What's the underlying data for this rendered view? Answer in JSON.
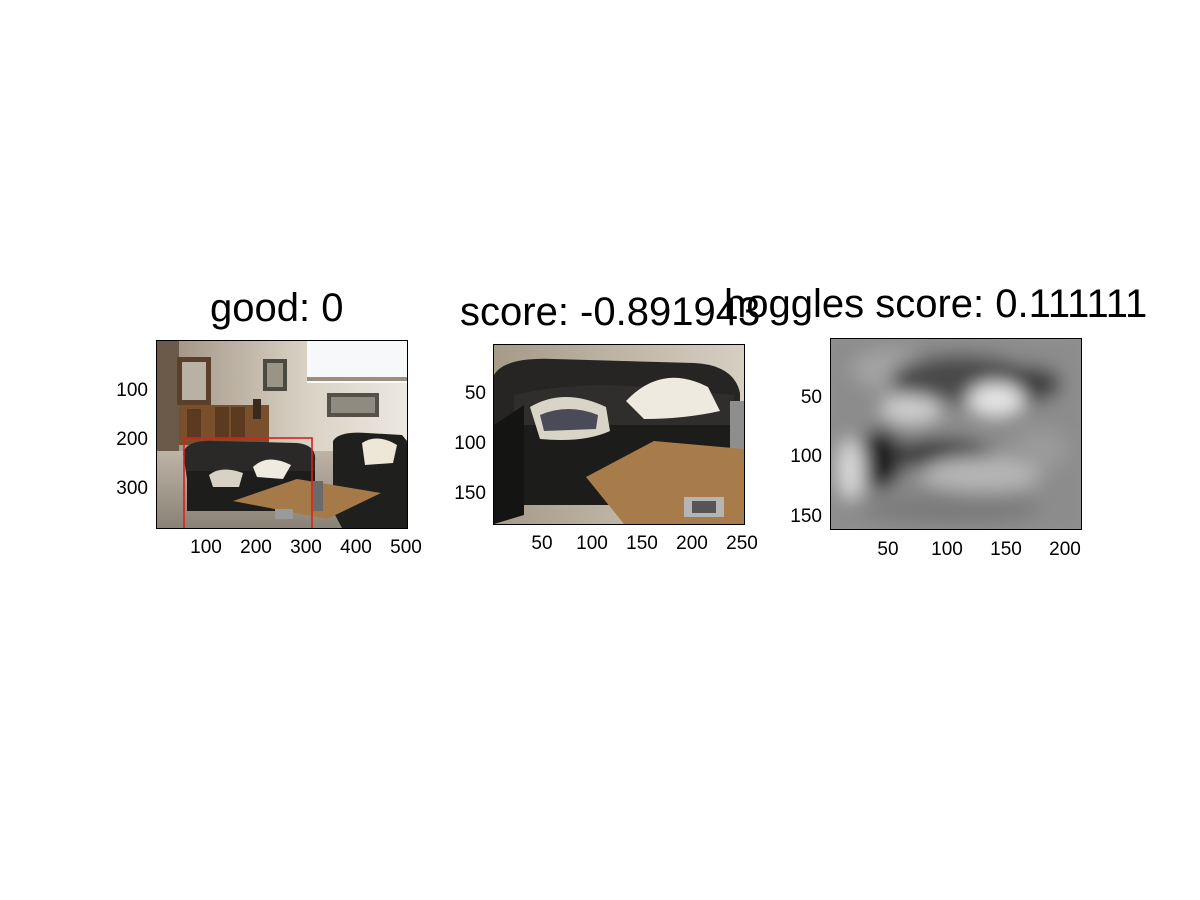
{
  "figure": {
    "panels": [
      {
        "title": "good: 0",
        "image_description_icon": "living-room-photo",
        "bbox_color": "#dd1f1f",
        "yticks": [
          "100",
          "200",
          "300"
        ],
        "xticks": [
          "100",
          "200",
          "300",
          "400",
          "500"
        ]
      },
      {
        "title": "score: -0.891943",
        "image_description_icon": "sofa-crop-photo",
        "yticks": [
          "50",
          "100",
          "150"
        ],
        "xticks": [
          "50",
          "100",
          "150",
          "200",
          "250"
        ]
      },
      {
        "title": "hoggles score: 0.111111",
        "image_description_icon": "hoggles-grayscale-image",
        "yticks": [
          "50",
          "100",
          "150"
        ],
        "xticks": [
          "50",
          "100",
          "150",
          "200"
        ]
      }
    ]
  }
}
